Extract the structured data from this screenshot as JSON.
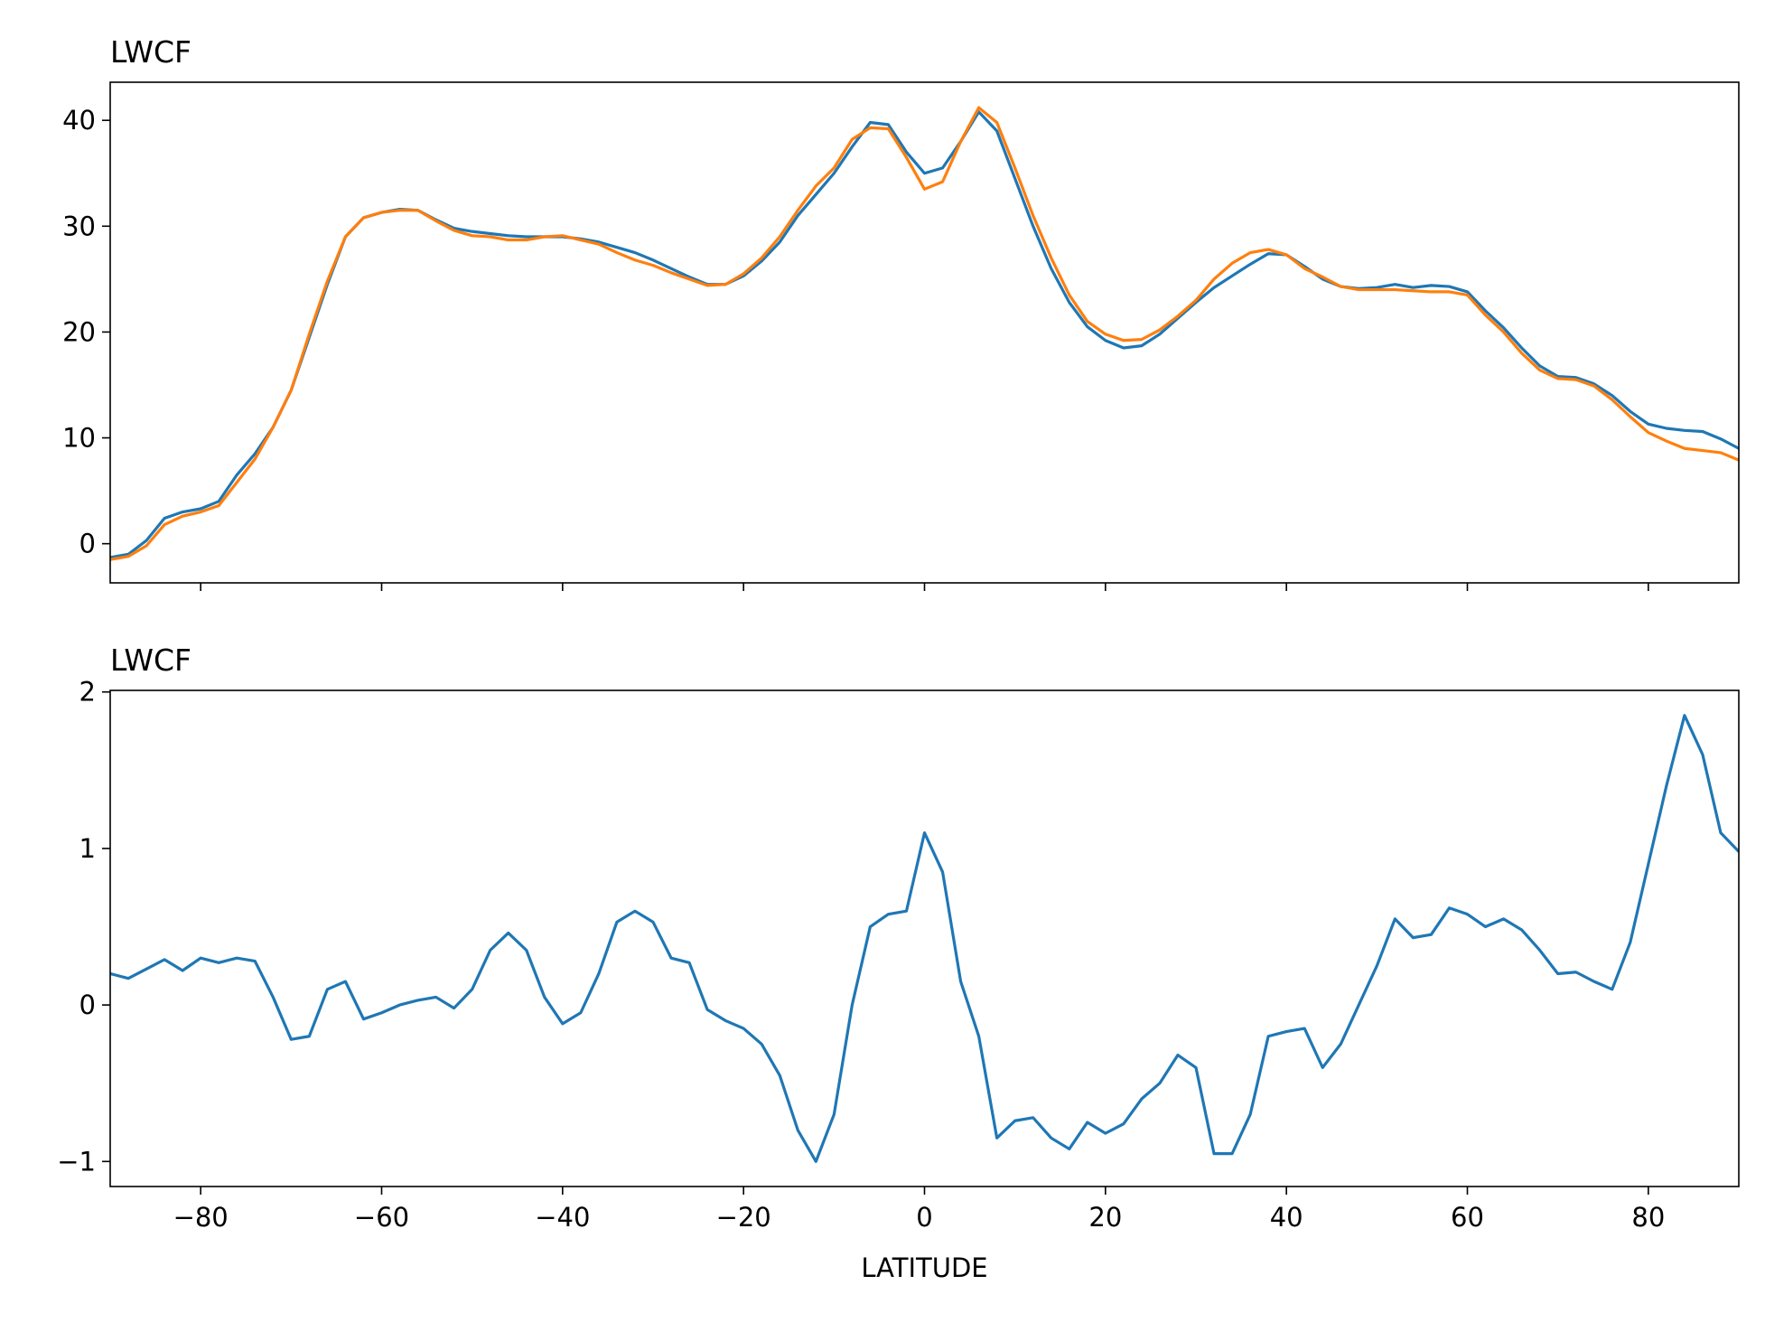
{
  "chart_data": [
    {
      "type": "line",
      "title": "LWCF",
      "x": [
        -90,
        -88,
        -86,
        -84,
        -82,
        -80,
        -78,
        -76,
        -74,
        -72,
        -70,
        -68,
        -66,
        -64,
        -62,
        -60,
        -58,
        -56,
        -54,
        -52,
        -50,
        -48,
        -46,
        -44,
        -42,
        -40,
        -38,
        -36,
        -34,
        -32,
        -30,
        -28,
        -26,
        -24,
        -22,
        -20,
        -18,
        -16,
        -14,
        -12,
        -10,
        -8,
        -6,
        -4,
        -2,
        0,
        2,
        4,
        6,
        8,
        10,
        12,
        14,
        16,
        18,
        20,
        22,
        24,
        26,
        28,
        30,
        32,
        34,
        36,
        38,
        40,
        42,
        44,
        46,
        48,
        50,
        52,
        54,
        56,
        58,
        60,
        62,
        64,
        66,
        68,
        70,
        72,
        74,
        76,
        78,
        80,
        82,
        84,
        86,
        88,
        90
      ],
      "series": [
        {
          "color": "#1f77b4",
          "values": [
            -1.3,
            -1.0,
            0.3,
            2.4,
            3.0,
            3.3,
            4.0,
            6.5,
            8.5,
            11,
            14.5,
            19.5,
            24.5,
            29,
            30.8,
            31.3,
            31.6,
            31.5,
            30.6,
            29.8,
            29.5,
            29.3,
            29.1,
            29.0,
            29.0,
            29.0,
            28.8,
            28.5,
            28.0,
            27.5,
            26.8,
            26.0,
            25.2,
            24.5,
            24.5,
            25.3,
            26.7,
            28.5,
            31,
            33,
            35,
            37.5,
            39.8,
            39.6,
            37,
            35,
            35.5,
            38,
            40.8,
            39,
            34.5,
            30,
            26,
            22.8,
            20.5,
            19.2,
            18.5,
            18.7,
            19.8,
            21.3,
            22.8,
            24.2,
            25.3,
            26.4,
            27.4,
            27.3,
            26.2,
            25,
            24.3,
            24.1,
            24.2,
            24.5,
            24.2,
            24.4,
            24.3,
            23.8,
            22,
            20.4,
            18.5,
            16.8,
            15.8,
            15.7,
            15.1,
            14,
            12.5,
            11.3,
            10.9,
            10.7,
            10.6,
            9.9,
            9.0
          ]
        },
        {
          "color": "#ff7f0e",
          "values": [
            -1.5,
            -1.2,
            -0.2,
            1.8,
            2.6,
            3.0,
            3.6,
            5.8,
            8,
            11,
            14.5,
            19.8,
            24.8,
            29,
            30.8,
            31.3,
            31.5,
            31.5,
            30.5,
            29.6,
            29.1,
            29.0,
            28.7,
            28.7,
            29.0,
            29.1,
            28.7,
            28.3,
            27.5,
            26.8,
            26.3,
            25.6,
            25,
            24.4,
            24.5,
            25.5,
            27,
            29,
            31.5,
            33.8,
            35.5,
            38.2,
            39.3,
            39.2,
            36.5,
            33.5,
            34.2,
            38,
            41.2,
            39.8,
            35.5,
            31,
            27,
            23.5,
            21,
            19.8,
            19.2,
            19.3,
            20.2,
            21.5,
            23,
            25,
            26.5,
            27.5,
            27.8,
            27.3,
            26,
            25.2,
            24.3,
            24.0,
            24.0,
            24.0,
            23.9,
            23.8,
            23.8,
            23.5,
            21.6,
            20,
            18,
            16.4,
            15.6,
            15.5,
            14.9,
            13.6,
            12,
            10.5,
            9.7,
            9.0,
            8.8,
            8.6,
            7.9
          ]
        }
      ],
      "xlim": [
        -90,
        90
      ],
      "xticks": [
        -80,
        -60,
        -40,
        -20,
        0,
        20,
        40,
        60,
        80
      ],
      "xtick_labels": false,
      "ylim": [
        -3.7,
        43.6
      ],
      "yticks": [
        0,
        10,
        20,
        30,
        40
      ]
    },
    {
      "type": "line",
      "title": "LWCF",
      "xlabel": "LATITUDE",
      "x": [
        -90,
        -88,
        -86,
        -84,
        -82,
        -80,
        -78,
        -76,
        -74,
        -72,
        -70,
        -68,
        -66,
        -64,
        -62,
        -60,
        -58,
        -56,
        -54,
        -52,
        -50,
        -48,
        -46,
        -44,
        -42,
        -40,
        -38,
        -36,
        -34,
        -32,
        -30,
        -28,
        -26,
        -24,
        -22,
        -20,
        -18,
        -16,
        -14,
        -12,
        -10,
        -8,
        -6,
        -4,
        -2,
        0,
        2,
        4,
        6,
        8,
        10,
        12,
        14,
        16,
        18,
        20,
        22,
        24,
        26,
        28,
        30,
        32,
        34,
        36,
        38,
        40,
        42,
        44,
        46,
        48,
        50,
        52,
        54,
        56,
        58,
        60,
        62,
        64,
        66,
        68,
        70,
        72,
        74,
        76,
        78,
        80,
        82,
        84,
        86,
        88,
        90
      ],
      "series": [
        {
          "color": "#1f77b4",
          "values": [
            0.2,
            0.17,
            0.23,
            0.29,
            0.22,
            0.3,
            0.27,
            0.3,
            0.28,
            0.05,
            -0.22,
            -0.2,
            0.1,
            0.15,
            -0.09,
            -0.05,
            0.0,
            0.03,
            0.05,
            -0.02,
            0.1,
            0.35,
            0.46,
            0.35,
            0.05,
            -0.12,
            -0.05,
            0.2,
            0.53,
            0.6,
            0.53,
            0.3,
            0.27,
            -0.03,
            -0.1,
            -0.15,
            -0.25,
            -0.45,
            -0.8,
            -1.0,
            -0.7,
            0.0,
            0.5,
            0.58,
            0.6,
            1.1,
            0.85,
            0.15,
            -0.2,
            -0.85,
            -0.74,
            -0.72,
            -0.85,
            -0.92,
            -0.75,
            -0.82,
            -0.76,
            -0.6,
            -0.5,
            -0.32,
            -0.4,
            -0.95,
            -0.95,
            -0.7,
            -0.2,
            -0.17,
            -0.15,
            -0.4,
            -0.25,
            0.0,
            0.25,
            0.55,
            0.43,
            0.45,
            0.62,
            0.58,
            0.5,
            0.55,
            0.48,
            0.35,
            0.2,
            0.21,
            0.15,
            0.1,
            0.4,
            0.9,
            1.4,
            1.85,
            1.6,
            1.1,
            0.98
          ]
        }
      ],
      "xlim": [
        -90,
        90
      ],
      "xticks": [
        {
          "value": -80,
          "label": "−80"
        },
        {
          "value": -60,
          "label": "−60"
        },
        {
          "value": -40,
          "label": "−40"
        },
        {
          "value": -20,
          "label": "−20"
        },
        0,
        20,
        40,
        60,
        80
      ],
      "xtick_labels": true,
      "ylim": [
        -1.16,
        2.01
      ],
      "yticks": [
        {
          "value": -1,
          "label": "−1"
        },
        0,
        1,
        2
      ]
    }
  ]
}
